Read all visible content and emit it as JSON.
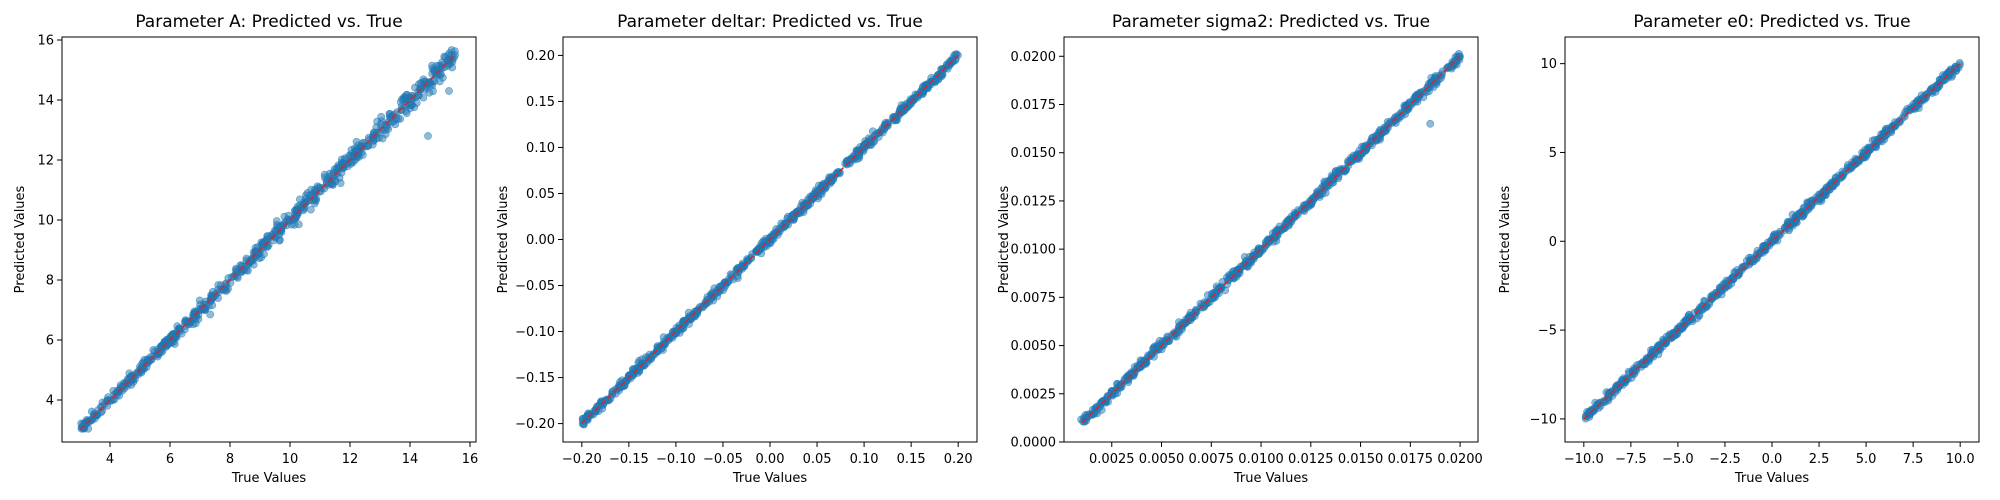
{
  "colors": {
    "points": "#1f77b4",
    "reference_line": "#d62728",
    "frame": "#000000"
  },
  "chart_data": [
    {
      "type": "scatter",
      "title": "Parameter A: Predicted vs. True",
      "xlabel": "True Values",
      "ylabel": "Predicted Values",
      "xlim": [
        2.4,
        16.2
      ],
      "ylim": [
        2.6,
        16.1
      ],
      "xticks": [
        4,
        6,
        8,
        10,
        12,
        14,
        16
      ],
      "xtick_labels": [
        "4",
        "6",
        "8",
        "10",
        "12",
        "14",
        "16"
      ],
      "yticks": [
        4,
        6,
        8,
        10,
        12,
        14,
        16
      ],
      "ytick_labels": [
        "4",
        "6",
        "8",
        "10",
        "12",
        "14",
        "16"
      ],
      "range": [
        3.0,
        15.5
      ],
      "outliers": [
        [
          14.6,
          12.8
        ],
        [
          15.3,
          14.3
        ],
        [
          15.5,
          15.5
        ],
        [
          14.2,
          14.1
        ]
      ],
      "reference_line": "y = x (red dashed)",
      "grid": false
    },
    {
      "type": "scatter",
      "title": "Parameter deltar: Predicted vs. True",
      "xlabel": "True Values",
      "ylabel": "Predicted Values",
      "xlim": [
        -0.22,
        0.22
      ],
      "ylim": [
        -0.22,
        0.22
      ],
      "xticks": [
        -0.2,
        -0.15,
        -0.1,
        -0.05,
        0.0,
        0.05,
        0.1,
        0.15,
        0.2
      ],
      "xtick_labels": [
        "−0.20",
        "−0.15",
        "−0.10",
        "−0.05",
        "0.00",
        "0.05",
        "0.10",
        "0.15",
        "0.20"
      ],
      "yticks": [
        -0.2,
        -0.15,
        -0.1,
        -0.05,
        0.0,
        0.05,
        0.1,
        0.15,
        0.2
      ],
      "ytick_labels": [
        "−0.20",
        "−0.15",
        "−0.10",
        "−0.05",
        "0.00",
        "0.05",
        "0.10",
        "0.15",
        "0.20"
      ],
      "range": [
        -0.2,
        0.2
      ],
      "outliers": [],
      "reference_line": "y = x (red dashed)",
      "grid": false
    },
    {
      "type": "scatter",
      "title": "Parameter sigma2: Predicted vs. True",
      "xlabel": "True Values",
      "ylabel": "Predicted Values",
      "xlim": [
        0.0001,
        0.0209
      ],
      "ylim": [
        0.0,
        0.021
      ],
      "xticks": [
        0.0025,
        0.005,
        0.0075,
        0.01,
        0.0125,
        0.015,
        0.0175,
        0.02
      ],
      "xtick_labels": [
        "0.0025",
        "0.0050",
        "0.0075",
        "0.0100",
        "0.0125",
        "0.0150",
        "0.0175",
        "0.0200"
      ],
      "yticks": [
        0.0,
        0.0025,
        0.005,
        0.0075,
        0.01,
        0.0125,
        0.015,
        0.0175,
        0.02
      ],
      "ytick_labels": [
        "0.0000",
        "0.0025",
        "0.0050",
        "0.0075",
        "0.0100",
        "0.0125",
        "0.0150",
        "0.0175",
        "0.0200"
      ],
      "range": [
        0.001,
        0.02
      ],
      "outliers": [
        [
          0.0185,
          0.0165
        ]
      ],
      "reference_line": "y = x (red dashed)",
      "grid": false
    },
    {
      "type": "scatter",
      "title": "Parameter e0: Predicted vs. True",
      "xlabel": "True Values",
      "ylabel": "Predicted Values",
      "xlim": [
        -11.0,
        11.0
      ],
      "ylim": [
        -11.3,
        11.5
      ],
      "xticks": [
        -10.0,
        -7.5,
        -5.0,
        -2.5,
        0.0,
        2.5,
        5.0,
        7.5,
        10.0
      ],
      "xtick_labels": [
        "−10.0",
        "−7.5",
        "−5.0",
        "−2.5",
        "0.0",
        "2.5",
        "5.0",
        "7.5",
        "10.0"
      ],
      "yticks": [
        -10,
        -5,
        0,
        5,
        10
      ],
      "ytick_labels": [
        "−10",
        "−5",
        "0",
        "5",
        "10"
      ],
      "range": [
        -10.0,
        10.0
      ],
      "outliers": [],
      "reference_line": "y = x (red dashed)",
      "grid": false
    }
  ]
}
